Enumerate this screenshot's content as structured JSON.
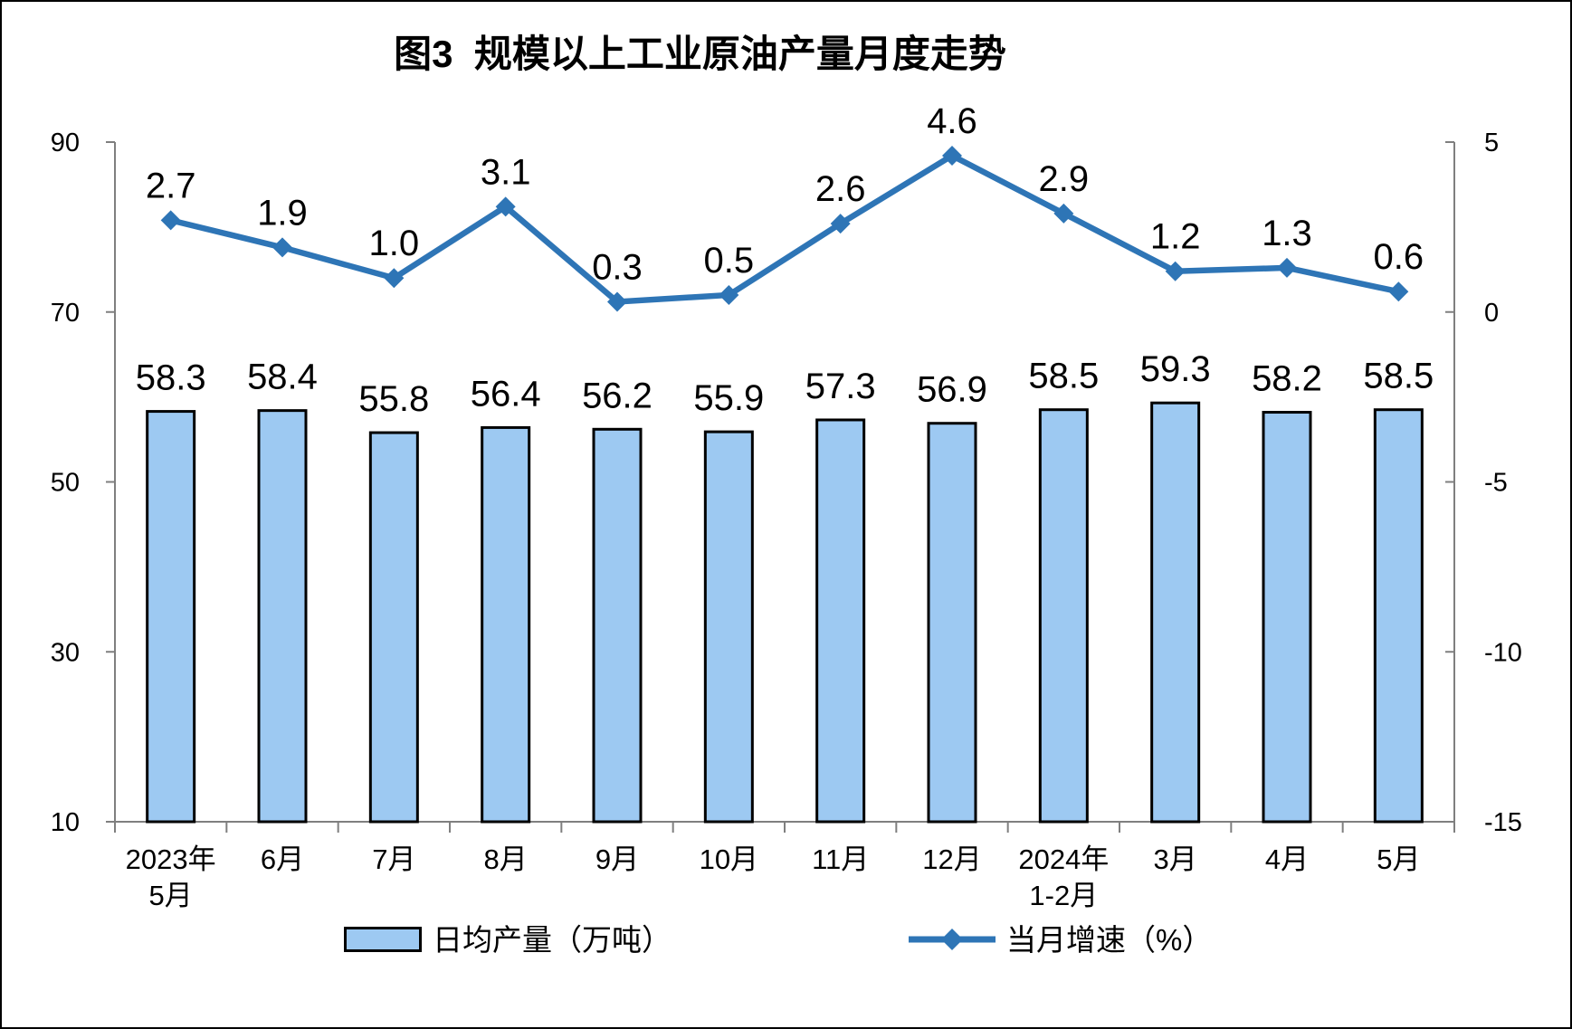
{
  "title": "图3  规模以上工业原油产量月度走势",
  "legend": {
    "bar_label": "日均产量（万吨）",
    "line_label": "当月增速（%）"
  },
  "colors": {
    "bar_fill": "#9DC9F2",
    "bar_stroke": "#000000",
    "line": "#2E75B6",
    "axis": "#7F7F7F",
    "text": "#000000",
    "background": "#FFFFFF"
  },
  "chart_data": {
    "type": "bar+line",
    "title": "图3  规模以上工业原油产量月度走势",
    "categories": [
      "2023年\n5月",
      "6月",
      "7月",
      "8月",
      "9月",
      "10月",
      "11月",
      "12月",
      "2024年\n1-2月",
      "3月",
      "4月",
      "5月"
    ],
    "series": [
      {
        "name": "日均产量（万吨）",
        "type": "bar",
        "axis": "left",
        "values": [
          58.3,
          58.4,
          55.8,
          56.4,
          56.2,
          55.9,
          57.3,
          56.9,
          58.5,
          59.3,
          58.2,
          58.5
        ]
      },
      {
        "name": "当月增速（%）",
        "type": "line",
        "axis": "right",
        "values": [
          2.7,
          1.9,
          1.0,
          3.1,
          0.3,
          0.5,
          2.6,
          4.6,
          2.9,
          1.2,
          1.3,
          0.6
        ]
      }
    ],
    "left_axis": {
      "min": 10,
      "max": 90,
      "ticks": [
        10,
        30,
        50,
        70,
        90
      ]
    },
    "right_axis": {
      "min": -15,
      "max": 5,
      "ticks": [
        -15,
        -10,
        -5,
        0,
        5
      ]
    },
    "grid": false,
    "legend_position": "bottom"
  }
}
